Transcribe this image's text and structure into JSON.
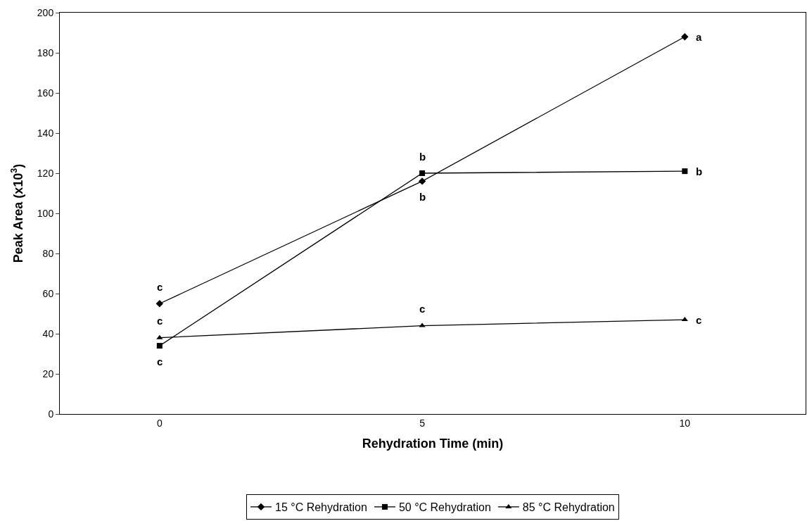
{
  "chart_data": {
    "type": "line",
    "xlabel": "Rehydration Time (min)",
    "ylabel": "Peak Area (x10$^{3}$)",
    "categories": [
      "0",
      "5",
      "10"
    ],
    "series": [
      {
        "name": "15 °C Rehydration",
        "color": "#000000",
        "marker": "diamond",
        "values": [
          55,
          116,
          188
        ]
      },
      {
        "name": "50 °C Rehydration",
        "color": "#000000",
        "marker": "square",
        "values": [
          34,
          120,
          121
        ]
      },
      {
        "name": "85 °C Rehydration",
        "color": "#000000",
        "marker": "triangle",
        "values": [
          38,
          44,
          47
        ]
      }
    ],
    "ylim": [
      0,
      200
    ],
    "yticks": [
      0,
      20,
      40,
      60,
      80,
      100,
      120,
      140,
      160,
      180,
      200
    ],
    "legend": "bottom",
    "line_style": "solid",
    "annotations": [
      {
        "text": "c",
        "x": "0",
        "y": 55
      },
      {
        "text": "c",
        "x": "0",
        "y": 38
      },
      {
        "text": "c",
        "x": "0",
        "y": 34
      },
      {
        "text": "b",
        "x": "5",
        "y": 120
      },
      {
        "text": "b",
        "x": "5",
        "y": 116
      },
      {
        "text": "c",
        "x": "5",
        "y": 44
      },
      {
        "text": "a",
        "x": "10",
        "y": 188
      },
      {
        "text": "b",
        "x": "10",
        "y": 121
      },
      {
        "text": "c",
        "x": "10",
        "y": 47
      }
    ]
  }
}
